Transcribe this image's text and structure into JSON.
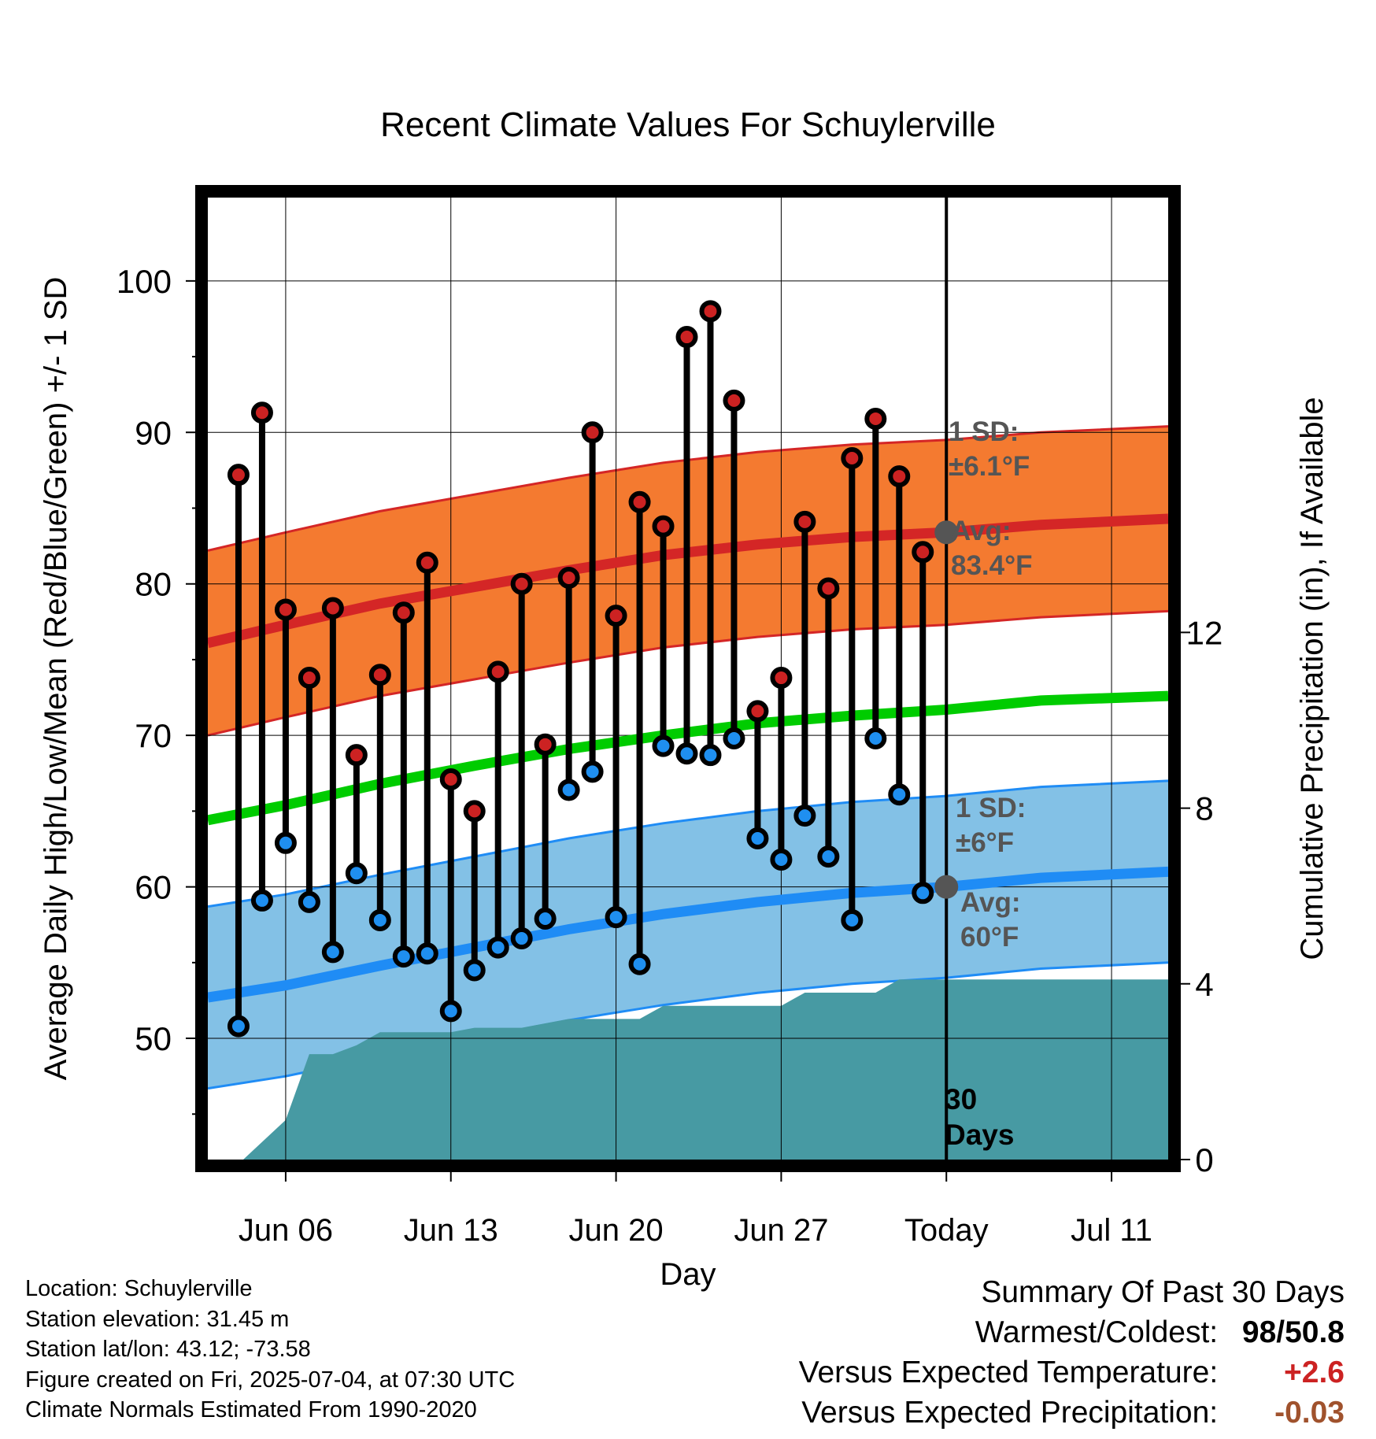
{
  "chart_data": {
    "type": "line",
    "title": "Recent Climate Values For Schuylerville",
    "xlabel": "Day",
    "ylabel": "Average Daily High/Low/Mean (Red/Blue/Green) +/- 1 SD",
    "y2label": "Cumulative Precipitation (in), If Available",
    "ylim": [
      42,
      105.5
    ],
    "y2lim": [
      0,
      21.9
    ],
    "yticks": [
      50,
      60,
      70,
      80,
      90,
      100
    ],
    "y2ticks": [
      0,
      4,
      8,
      12
    ],
    "xticks": [
      {
        "day": 6,
        "label": "Jun 06"
      },
      {
        "day": 13,
        "label": "Jun 13"
      },
      {
        "day": 20,
        "label": "Jun 20"
      },
      {
        "day": 27,
        "label": "Jun 27"
      },
      {
        "day": 34,
        "label": "Today"
      },
      {
        "day": 41,
        "label": "Jul 11"
      }
    ],
    "x_days_start": 2.7,
    "x_days_end": 43.4,
    "today_day": 34,
    "today_label": [
      "30",
      "Days"
    ],
    "grid": true,
    "daily": [
      {
        "date": "Jun 04",
        "high": 87.2,
        "low": 50.8
      },
      {
        "date": "Jun 05",
        "high": 91.3,
        "low": 59.1
      },
      {
        "date": "Jun 06",
        "high": 78.3,
        "low": 62.9
      },
      {
        "date": "Jun 07",
        "high": 73.8,
        "low": 59.0
      },
      {
        "date": "Jun 08",
        "high": 78.4,
        "low": 55.7
      },
      {
        "date": "Jun 09",
        "high": 68.7,
        "low": 60.9
      },
      {
        "date": "Jun 10",
        "high": 74.0,
        "low": 57.8
      },
      {
        "date": "Jun 11",
        "high": 78.1,
        "low": 55.4
      },
      {
        "date": "Jun 12",
        "high": 81.4,
        "low": 55.6
      },
      {
        "date": "Jun 13",
        "high": 67.1,
        "low": 51.8
      },
      {
        "date": "Jun 14",
        "high": 65.0,
        "low": 54.5
      },
      {
        "date": "Jun 15",
        "high": 74.2,
        "low": 56.0
      },
      {
        "date": "Jun 16",
        "high": 80.0,
        "low": 56.6
      },
      {
        "date": "Jun 17",
        "high": 69.4,
        "low": 57.9
      },
      {
        "date": "Jun 18",
        "high": 80.4,
        "low": 66.4
      },
      {
        "date": "Jun 19",
        "high": 90.0,
        "low": 67.6
      },
      {
        "date": "Jun 20",
        "high": 77.9,
        "low": 58.0
      },
      {
        "date": "Jun 21",
        "high": 85.4,
        "low": 54.9
      },
      {
        "date": "Jun 22",
        "high": 83.8,
        "low": 69.3
      },
      {
        "date": "Jun 23",
        "high": 96.3,
        "low": 68.8
      },
      {
        "date": "Jun 24",
        "high": 98.0,
        "low": 68.7
      },
      {
        "date": "Jun 25",
        "high": 92.1,
        "low": 69.8
      },
      {
        "date": "Jun 26",
        "high": 71.6,
        "low": 63.2
      },
      {
        "date": "Jun 27",
        "high": 73.8,
        "low": 61.8
      },
      {
        "date": "Jun 28",
        "high": 84.1,
        "low": 64.7
      },
      {
        "date": "Jun 29",
        "high": 79.7,
        "low": 62.0
      },
      {
        "date": "Jun 30",
        "high": 88.3,
        "low": 57.8
      },
      {
        "date": "Jul 01",
        "high": 90.9,
        "low": 69.8
      },
      {
        "date": "Jul 02",
        "high": 87.1,
        "low": 66.1
      },
      {
        "date": "Jul 03",
        "high": 82.1,
        "low": 59.6
      }
    ],
    "normals": {
      "x": [
        2.7,
        6,
        10,
        14,
        18,
        22,
        26,
        30,
        34,
        38,
        43.4
      ],
      "high_avg": [
        76.1,
        77.3,
        78.7,
        79.8,
        80.9,
        81.9,
        82.6,
        83.1,
        83.4,
        83.9,
        84.3
      ],
      "high_sd": 6.1,
      "low_avg": [
        52.7,
        53.5,
        54.8,
        56.0,
        57.2,
        58.2,
        59.0,
        59.6,
        60.0,
        60.6,
        61.0
      ],
      "low_sd": 6.0,
      "mean_avg": [
        64.4,
        65.4,
        66.8,
        68.0,
        69.1,
        70.0,
        70.8,
        71.3,
        71.7,
        72.3,
        72.6
      ]
    },
    "cumulative_precip": {
      "x": [
        2.7,
        4.2,
        6,
        7,
        8,
        9,
        10,
        11,
        12,
        13,
        14,
        15,
        16,
        17,
        18,
        19,
        20,
        21,
        22,
        23,
        24,
        25,
        26,
        27,
        28,
        29,
        30,
        31,
        32,
        33,
        34,
        43.4
      ],
      "values": [
        0,
        0,
        0.9,
        2.4,
        2.4,
        2.6,
        2.9,
        2.9,
        2.9,
        2.9,
        3.0,
        3.0,
        3.0,
        3.1,
        3.2,
        3.2,
        3.2,
        3.2,
        3.5,
        3.5,
        3.5,
        3.5,
        3.5,
        3.5,
        3.8,
        3.8,
        3.8,
        3.8,
        4.1,
        4.1,
        4.1,
        4.1
      ]
    },
    "annotations": {
      "high_sd_label": [
        "1 SD:",
        "±6.1°F"
      ],
      "high_avg_label": [
        "Avg:",
        "83.4°F"
      ],
      "low_sd_label": [
        "1 SD:",
        "±6°F"
      ],
      "low_avg_label": [
        "Avg:",
        "60°F"
      ]
    },
    "colors": {
      "high_band": "#f47a30",
      "high_line": "#d42626",
      "low_band": "#83c1e6",
      "low_line": "#1f8cf5",
      "mean_line": "#00cc00",
      "precip_fill": "#479aa3",
      "high_dot": "#cc2222",
      "low_dot": "#1f8ff0",
      "annotation_text": "#555555"
    }
  },
  "info": {
    "location": "Location: Schuylerville",
    "elevation": "Station elevation: 31.45 m",
    "latlon": "Station lat/lon: 43.12; -73.58",
    "created": "Figure created on Fri, 2025-07-04, at 07:30 UTC",
    "normals": "Climate Normals Estimated From 1990-2020"
  },
  "summary": {
    "title": "Summary Of Past 30 Days",
    "warmest_label": "Warmest/Coldest:",
    "warmest_value": "98/50.8",
    "temp_label": "Versus Expected Temperature:",
    "temp_value": "+2.6",
    "temp_color": "#cc2222",
    "precip_label": "Versus Expected Precipitation:",
    "precip_value": "-0.03",
    "precip_color": "#a0522d"
  }
}
